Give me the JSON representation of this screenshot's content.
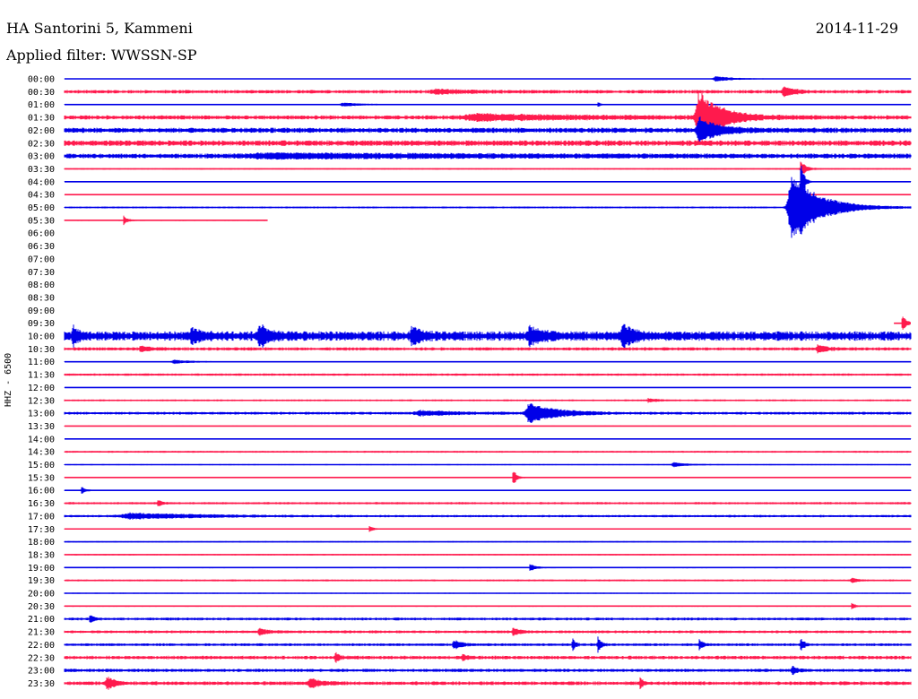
{
  "header": {
    "station": "HA Santorini 5, Kammeni",
    "date": "2014-11-29",
    "filter": "Applied filter: WWSSN-SP"
  },
  "channel_label": "HHZ - 6500",
  "colors": {
    "even": "#0000e8",
    "odd": "#ff1a4d",
    "background": "#ffffff",
    "text": "#000000"
  },
  "chart_data": {
    "type": "line",
    "title": "",
    "traces": [
      {
        "time": "00:00",
        "color": "blue",
        "noise": 0.2,
        "coverage": [
          0,
          1
        ],
        "events": [
          {
            "at": 0.77,
            "amp": 3,
            "width": 0.025
          }
        ]
      },
      {
        "time": "00:30",
        "color": "red",
        "noise": 1.5,
        "coverage": [
          0,
          1
        ],
        "events": [
          {
            "at": 0.44,
            "amp": 2,
            "width": 0.04
          },
          {
            "at": 0.85,
            "amp": 6,
            "width": 0.01
          }
        ]
      },
      {
        "time": "01:00",
        "color": "blue",
        "noise": 0.3,
        "coverage": [
          0,
          1
        ],
        "events": [
          {
            "at": 0.33,
            "amp": 2,
            "width": 0.03
          },
          {
            "at": 0.63,
            "amp": 3,
            "width": 0.004
          }
        ]
      },
      {
        "time": "01:30",
        "color": "red",
        "noise": 1.8,
        "coverage": [
          0,
          1
        ],
        "events": [
          {
            "at": 0.49,
            "amp": 3,
            "width": 0.12
          },
          {
            "at": 0.75,
            "amp": 28,
            "width": 0.025
          }
        ]
      },
      {
        "time": "02:00",
        "color": "blue",
        "noise": 2.2,
        "coverage": [
          0,
          1
        ],
        "events": [
          {
            "at": 0.75,
            "amp": 14,
            "width": 0.02
          }
        ]
      },
      {
        "time": "02:30",
        "color": "red",
        "noise": 2.4,
        "coverage": [
          0,
          1
        ],
        "events": []
      },
      {
        "time": "03:00",
        "color": "blue",
        "noise": 2.0,
        "coverage": [
          0,
          1
        ],
        "events": [
          {
            "at": 0.25,
            "amp": 2,
            "width": 0.25
          }
        ]
      },
      {
        "time": "03:30",
        "color": "red",
        "noise": 0.6,
        "coverage": [
          0,
          1
        ],
        "events": [
          {
            "at": 0.87,
            "amp": 10,
            "width": 0.006
          }
        ]
      },
      {
        "time": "04:00",
        "color": "blue",
        "noise": 0.2,
        "coverage": [
          0,
          1
        ],
        "events": [
          {
            "at": 0.87,
            "amp": 22,
            "width": 0.004
          }
        ]
      },
      {
        "time": "04:30",
        "color": "red",
        "noise": 0.2,
        "coverage": [
          0,
          1
        ],
        "events": []
      },
      {
        "time": "05:00",
        "color": "blue",
        "noise": 0.8,
        "coverage": [
          0,
          1
        ],
        "events": [
          {
            "at": 0.86,
            "amp": 42,
            "width": 0.03
          }
        ]
      },
      {
        "time": "05:30",
        "color": "red",
        "noise": 0.6,
        "coverage": [
          0,
          0.24
        ],
        "events": [
          {
            "at": 0.07,
            "amp": 5,
            "width": 0.004
          }
        ]
      },
      {
        "time": "06:00",
        "color": "blue",
        "noise": 0,
        "coverage": [
          0,
          0
        ],
        "events": []
      },
      {
        "time": "06:30",
        "color": "red",
        "noise": 0,
        "coverage": [
          0,
          0
        ],
        "events": []
      },
      {
        "time": "07:00",
        "color": "blue",
        "noise": 0,
        "coverage": [
          0,
          0
        ],
        "events": []
      },
      {
        "time": "07:30",
        "color": "red",
        "noise": 0,
        "coverage": [
          0,
          0
        ],
        "events": []
      },
      {
        "time": "08:00",
        "color": "blue",
        "noise": 0,
        "coverage": [
          0,
          0
        ],
        "events": []
      },
      {
        "time": "08:30",
        "color": "red",
        "noise": 0,
        "coverage": [
          0,
          0
        ],
        "events": []
      },
      {
        "time": "09:00",
        "color": "blue",
        "noise": 0,
        "coverage": [
          0,
          0
        ],
        "events": []
      },
      {
        "time": "09:30",
        "color": "red",
        "noise": 0,
        "coverage": [
          0.98,
          1
        ],
        "events": [
          {
            "at": 0.99,
            "amp": 9,
            "width": 0.006
          }
        ]
      },
      {
        "time": "10:00",
        "color": "blue",
        "noise": 4,
        "coverage": [
          0,
          1
        ],
        "events": [
          {
            "at": 0.01,
            "amp": 10,
            "width": 0.005
          },
          {
            "at": 0.15,
            "amp": 8,
            "width": 0.01
          },
          {
            "at": 0.23,
            "amp": 12,
            "width": 0.01
          },
          {
            "at": 0.41,
            "amp": 9,
            "width": 0.01
          },
          {
            "at": 0.55,
            "amp": 8,
            "width": 0.015
          },
          {
            "at": 0.66,
            "amp": 11,
            "width": 0.012
          }
        ]
      },
      {
        "time": "10:30",
        "color": "red",
        "noise": 1.4,
        "coverage": [
          0,
          1
        ],
        "events": [
          {
            "at": 0.09,
            "amp": 3,
            "width": 0.01
          },
          {
            "at": 0.89,
            "amp": 4,
            "width": 0.01
          }
        ]
      },
      {
        "time": "11:00",
        "color": "blue",
        "noise": 0.5,
        "coverage": [
          0,
          1
        ],
        "events": [
          {
            "at": 0.13,
            "amp": 2,
            "width": 0.02
          }
        ]
      },
      {
        "time": "11:30",
        "color": "red",
        "noise": 1.0,
        "coverage": [
          0,
          1
        ],
        "events": []
      },
      {
        "time": "12:00",
        "color": "blue",
        "noise": 0.3,
        "coverage": [
          0,
          1
        ],
        "events": []
      },
      {
        "time": "12:30",
        "color": "red",
        "noise": 0.8,
        "coverage": [
          0,
          1
        ],
        "events": [
          {
            "at": 0.69,
            "amp": 2,
            "width": 0.01
          }
        ]
      },
      {
        "time": "13:00",
        "color": "blue",
        "noise": 1.2,
        "coverage": [
          0,
          1
        ],
        "events": [
          {
            "at": 0.42,
            "amp": 2.5,
            "width": 0.04
          },
          {
            "at": 0.55,
            "amp": 11,
            "width": 0.03
          }
        ]
      },
      {
        "time": "13:30",
        "color": "red",
        "noise": 0.4,
        "coverage": [
          0,
          1
        ],
        "events": []
      },
      {
        "time": "14:00",
        "color": "blue",
        "noise": 0.2,
        "coverage": [
          0,
          1
        ],
        "events": []
      },
      {
        "time": "14:30",
        "color": "red",
        "noise": 0.8,
        "coverage": [
          0,
          1
        ],
        "events": []
      },
      {
        "time": "15:00",
        "color": "blue",
        "noise": 0.5,
        "coverage": [
          0,
          1
        ],
        "events": [
          {
            "at": 0.72,
            "amp": 2.5,
            "width": 0.015
          }
        ]
      },
      {
        "time": "15:30",
        "color": "red",
        "noise": 0.4,
        "coverage": [
          0,
          1
        ],
        "events": [
          {
            "at": 0.53,
            "amp": 10,
            "width": 0.004
          }
        ]
      },
      {
        "time": "16:00",
        "color": "blue",
        "noise": 0.4,
        "coverage": [
          0,
          1
        ],
        "events": [
          {
            "at": 0.02,
            "amp": 5,
            "width": 0.004
          }
        ]
      },
      {
        "time": "16:30",
        "color": "red",
        "noise": 1.0,
        "coverage": [
          0,
          1
        ],
        "events": [
          {
            "at": 0.11,
            "amp": 4,
            "width": 0.004
          }
        ]
      },
      {
        "time": "17:00",
        "color": "blue",
        "noise": 1.0,
        "coverage": [
          0,
          1
        ],
        "events": [
          {
            "at": 0.08,
            "amp": 3,
            "width": 0.08
          }
        ]
      },
      {
        "time": "17:30",
        "color": "red",
        "noise": 0.5,
        "coverage": [
          0,
          1
        ],
        "events": [
          {
            "at": 0.36,
            "amp": 4,
            "width": 0.004
          }
        ]
      },
      {
        "time": "18:00",
        "color": "blue",
        "noise": 0.6,
        "coverage": [
          0,
          1
        ],
        "events": []
      },
      {
        "time": "18:30",
        "color": "red",
        "noise": 0.6,
        "coverage": [
          0,
          1
        ],
        "events": []
      },
      {
        "time": "19:00",
        "color": "blue",
        "noise": 0.6,
        "coverage": [
          0,
          1
        ],
        "events": [
          {
            "at": 0.55,
            "amp": 4,
            "width": 0.006
          }
        ]
      },
      {
        "time": "19:30",
        "color": "red",
        "noise": 0.8,
        "coverage": [
          0,
          1
        ],
        "events": [
          {
            "at": 0.93,
            "amp": 3,
            "width": 0.006
          }
        ]
      },
      {
        "time": "20:00",
        "color": "blue",
        "noise": 0.5,
        "coverage": [
          0,
          1
        ],
        "events": []
      },
      {
        "time": "20:30",
        "color": "red",
        "noise": 0.6,
        "coverage": [
          0,
          1
        ],
        "events": [
          {
            "at": 0.93,
            "amp": 4,
            "width": 0.004
          }
        ]
      },
      {
        "time": "21:00",
        "color": "blue",
        "noise": 1.2,
        "coverage": [
          0,
          1
        ],
        "events": [
          {
            "at": 0.03,
            "amp": 5,
            "width": 0.004
          }
        ]
      },
      {
        "time": "21:30",
        "color": "red",
        "noise": 1.2,
        "coverage": [
          0,
          1
        ],
        "events": [
          {
            "at": 0.23,
            "amp": 4,
            "width": 0.008
          },
          {
            "at": 0.53,
            "amp": 5,
            "width": 0.006
          }
        ]
      },
      {
        "time": "22:00",
        "color": "blue",
        "noise": 1.2,
        "coverage": [
          0,
          1
        ],
        "events": [
          {
            "at": 0.46,
            "amp": 5,
            "width": 0.008
          },
          {
            "at": 0.6,
            "amp": 9,
            "width": 0.003
          },
          {
            "at": 0.63,
            "amp": 12,
            "width": 0.003
          },
          {
            "at": 0.75,
            "amp": 6,
            "width": 0.004
          },
          {
            "at": 0.87,
            "amp": 7,
            "width": 0.004
          }
        ]
      },
      {
        "time": "22:30",
        "color": "red",
        "noise": 1.5,
        "coverage": [
          0,
          1
        ],
        "events": [
          {
            "at": 0.32,
            "amp": 5,
            "width": 0.005
          },
          {
            "at": 0.47,
            "amp": 4,
            "width": 0.005
          }
        ]
      },
      {
        "time": "23:00",
        "color": "blue",
        "noise": 1.4,
        "coverage": [
          0,
          1
        ],
        "events": [
          {
            "at": 0.86,
            "amp": 5,
            "width": 0.005
          }
        ]
      },
      {
        "time": "23:30",
        "color": "red",
        "noise": 1.6,
        "coverage": [
          0,
          1
        ],
        "events": [
          {
            "at": 0.05,
            "amp": 8,
            "width": 0.008
          },
          {
            "at": 0.29,
            "amp": 6,
            "width": 0.01
          },
          {
            "at": 0.68,
            "amp": 8,
            "width": 0.003
          }
        ]
      }
    ]
  }
}
